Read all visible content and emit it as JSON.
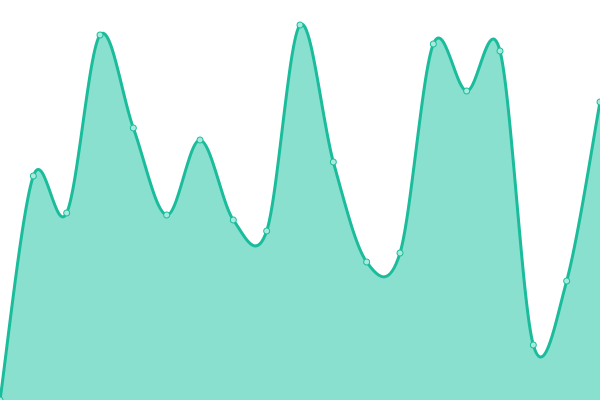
{
  "chart_data": {
    "type": "area",
    "x": [
      0,
      1,
      2,
      3,
      4,
      5,
      6,
      7,
      8,
      9,
      10,
      11,
      12,
      13,
      14,
      15,
      16,
      17,
      18
    ],
    "values": [
      0,
      224,
      187,
      365,
      272,
      185,
      260,
      180,
      169,
      375,
      238,
      138,
      147,
      356,
      309,
      349,
      55,
      119,
      298
    ],
    "ylim": [
      0,
      400
    ],
    "grid": false,
    "smooth": true,
    "colors": {
      "fill": "#89e0cf",
      "stroke": "#1abc9c",
      "marker": "#a8ebdd"
    }
  }
}
